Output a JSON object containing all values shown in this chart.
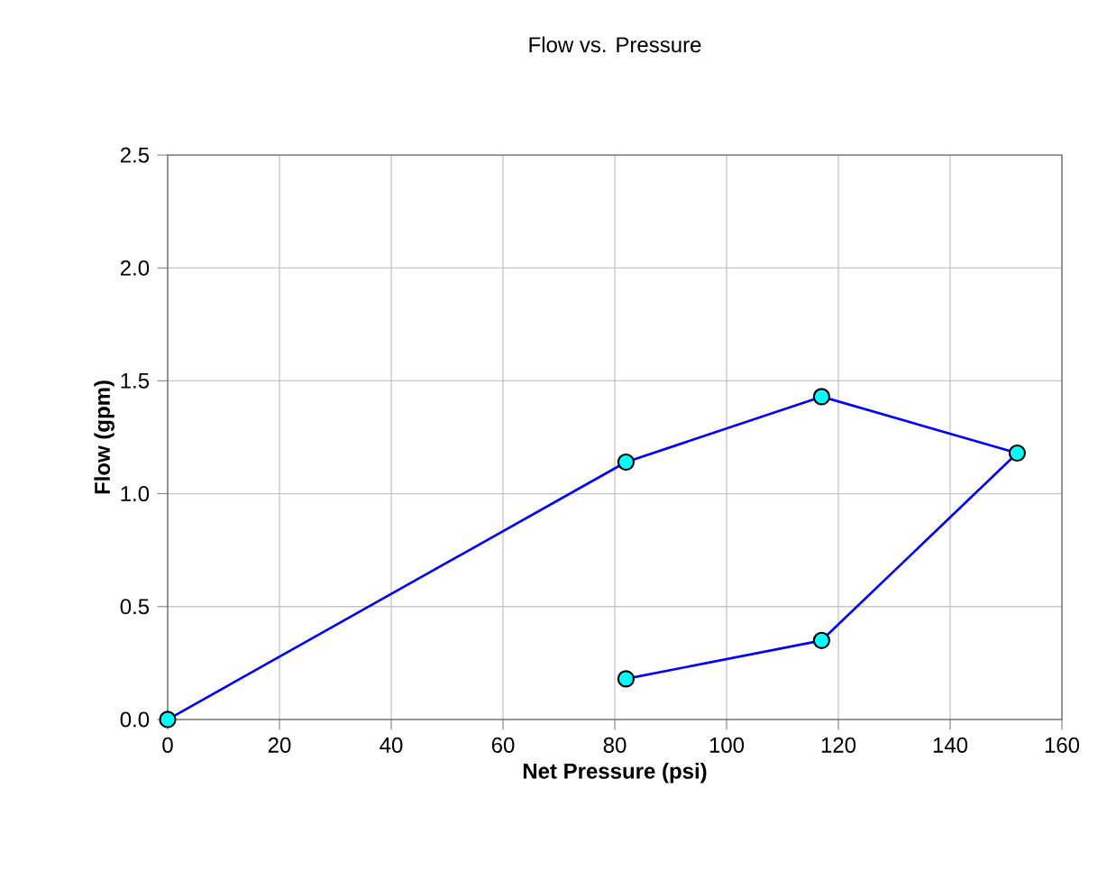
{
  "chart_data": {
    "type": "line",
    "title": "Flow vs. Pressure",
    "xlabel": "Net Pressure (psi)",
    "ylabel": "Flow (gpm)",
    "x": [
      0,
      82,
      117,
      152,
      117,
      82
    ],
    "series": [
      {
        "color": "#0000ff",
        "values": [
          0,
          1.14,
          1.43,
          1.18,
          0.35,
          0.18
        ]
      }
    ],
    "xlim": [
      0,
      160
    ],
    "xticks": [
      0,
      20,
      40,
      60,
      80,
      100,
      120,
      140,
      160
    ],
    "ylim": [
      0,
      2.5
    ],
    "yticks": [
      {
        "value": 0,
        "label": "0.0"
      },
      {
        "value": 0.5,
        "label": "0.5"
      },
      {
        "value": 1,
        "label": "1.0"
      },
      {
        "value": 1.5,
        "label": "1.5"
      },
      {
        "value": 2,
        "label": "2.0"
      },
      {
        "value": 2.5,
        "label": "2.5"
      }
    ],
    "grid": true,
    "marker": "circle",
    "line_style": "solid"
  }
}
